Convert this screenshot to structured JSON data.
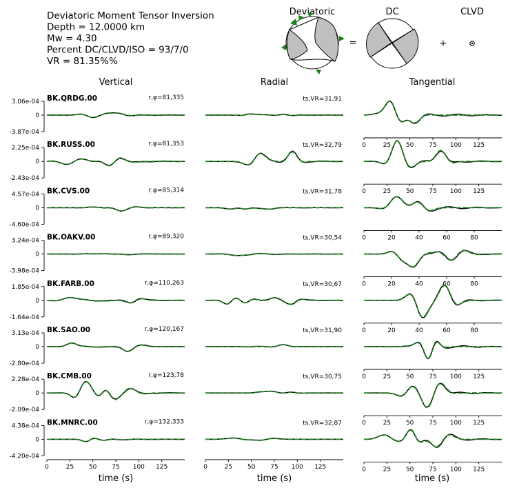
{
  "header": {
    "lines": [
      "Deviatoric Moment Tensor Inversion",
      "Depth = 12.0000 km",
      "Mw = 4.30",
      "Percent DC/CLVD/ISO = 93/7/0",
      "VR = 81.35%%"
    ],
    "beachball_titles": [
      "Deviatoric",
      "DC",
      "CLVD"
    ],
    "equals": "=",
    "plus": "+"
  },
  "column_titles": [
    "Vertical",
    "Radial",
    "Tangential"
  ],
  "x_label": "time (s)",
  "colors": {
    "observed": "#000000",
    "synthetic": "#1a7f1a",
    "beachball_fill": "#bfbfbf",
    "station_marker": "#1a7f1a"
  },
  "chart_data": {
    "type": "line",
    "series_styles": {
      "observed": "solid black",
      "synthetic": "dashed green"
    },
    "stations": [
      {
        "name": "BK.QRDG.00",
        "dist_az": "r,φ=81,335",
        "vr": "ts,VR=31,91",
        "ymax": "3.06e-04",
        "ymin": "-3.87e-04",
        "zero": "0",
        "xticks": [
          "0",
          "25",
          "50",
          "75",
          "100",
          "125"
        ],
        "xmax": 150
      },
      {
        "name": "BK.RUSS.00",
        "dist_az": "r,φ=81,353",
        "vr": "ts,VR=32,79",
        "ymax": "2.25e-04",
        "ymin": "-2.43e-04",
        "zero": "0",
        "xticks": [
          "0",
          "25",
          "50",
          "75",
          "100",
          "125"
        ],
        "xmax": 150
      },
      {
        "name": "BK.CVS.00",
        "dist_az": "r,φ=85,314",
        "vr": "ts,VR=31,78",
        "ymax": "4.57e-04",
        "ymin": "-4.60e-04",
        "zero": "0",
        "xticks": [
          "0",
          "20",
          "40",
          "60",
          "80"
        ],
        "xmax": 100
      },
      {
        "name": "BK.OAKV.00",
        "dist_az": "r,φ=89,320",
        "vr": "ts,VR=30,54",
        "ymax": "3.24e-04",
        "ymin": "-3.98e-04",
        "zero": "0",
        "xticks": [
          "0",
          "20",
          "40",
          "60",
          "80"
        ],
        "xmax": 100
      },
      {
        "name": "BK.FARB.00",
        "dist_az": "r,φ=110,263",
        "vr": "ts,VR=30,67",
        "ymax": "1.85e-04",
        "ymin": "-1.64e-04",
        "zero": "0",
        "xticks": [
          "0",
          "20",
          "40",
          "60",
          "80"
        ],
        "xmax": 100
      },
      {
        "name": "BK.SAO.00",
        "dist_az": "r,φ=120,167",
        "vr": "ts,VR=31,90",
        "ymax": "3.13e-04",
        "ymin": "-2.80e-04",
        "zero": "0",
        "xticks": [
          "0",
          "25",
          "50",
          "75",
          "100",
          "125"
        ],
        "xmax": 150
      },
      {
        "name": "BK.CMB.00",
        "dist_az": "r,φ=123,78",
        "vr": "ts,VR=30,75",
        "ymax": "2.28e-04",
        "ymin": "-2.09e-04",
        "zero": "0",
        "xticks": [
          "0",
          "25",
          "50",
          "75",
          "100",
          "125"
        ],
        "xmax": 150
      },
      {
        "name": "BK.MNRC.00",
        "dist_az": "r,φ=132,333",
        "vr": "ts,VR=32,87",
        "ymax": "4.38e-04",
        "ymin": "-4.20e-04",
        "zero": "0",
        "xticks": [
          "0",
          "25",
          "50",
          "75",
          "100",
          "125"
        ],
        "xmax": 150
      }
    ]
  }
}
